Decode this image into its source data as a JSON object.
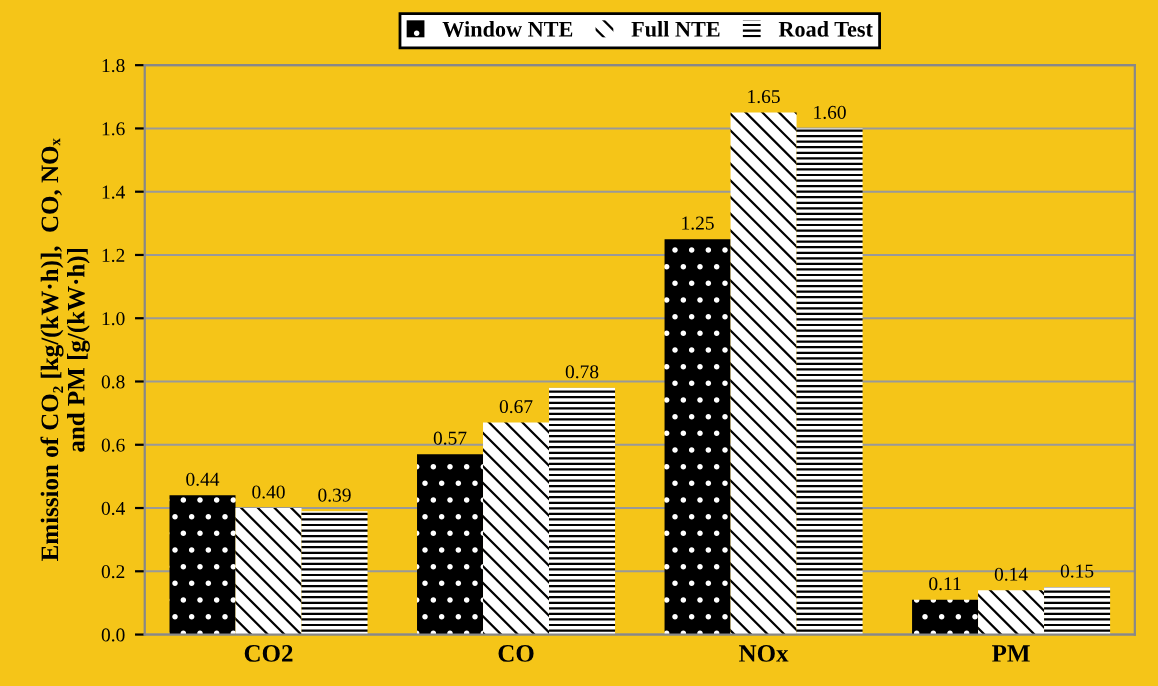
{
  "chart_data": {
    "type": "bar",
    "ylabel": "Emission of CO₂ [kg/(kW·h)],  CO, NOₓ\nand PM [g/(kW·h)]",
    "categories": [
      "CO2",
      "CO",
      "NOx",
      "PM"
    ],
    "series": [
      {
        "name": "Window NTE",
        "color": "#000000",
        "values": [
          0.44,
          0.57,
          1.25,
          0.11
        ],
        "value_labels": [
          "0.44",
          "0.57",
          "1.25",
          "0.11"
        ]
      },
      {
        "name": "Full NTE",
        "color": "#000000",
        "values": [
          0.4,
          0.67,
          1.65,
          0.14
        ],
        "value_labels": [
          "0.40",
          "0.67",
          "1.65",
          "0.14"
        ]
      },
      {
        "name": "Road Test",
        "color": "#000000",
        "values": [
          0.39,
          0.78,
          1.6,
          0.15
        ],
        "value_labels": [
          "0.39",
          "0.78",
          "1.60",
          "0.15"
        ]
      }
    ],
    "ylim": [
      0,
      1.8
    ],
    "yticks": [
      {
        "value": 0,
        "label": "0.0"
      },
      {
        "value": 0.2,
        "label": "0.2"
      },
      {
        "value": 0.4,
        "label": "0.4"
      },
      {
        "value": 0.6,
        "label": "0.6"
      },
      {
        "value": 0.8,
        "label": "0.8"
      },
      {
        "value": 1.0,
        "label": "1.0"
      },
      {
        "value": 1.2,
        "label": "1.2"
      },
      {
        "value": 1.4,
        "label": "1.4"
      },
      {
        "value": 1.6,
        "label": "1.6"
      },
      {
        "value": 1.8,
        "label": "1.8"
      }
    ],
    "grid": "y",
    "legend": "top"
  }
}
